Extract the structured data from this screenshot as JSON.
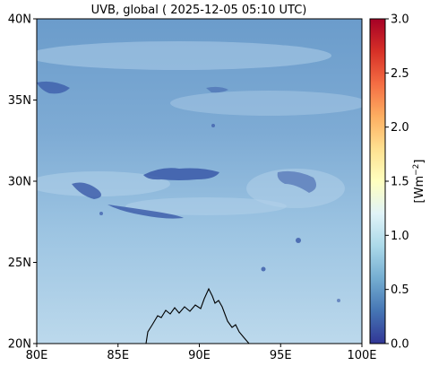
{
  "title": "UVB, global ( 2025-12-05 05:10 UTC)",
  "map": {
    "x_ticks": [
      "80E",
      "85E",
      "90E",
      "95E",
      "100E"
    ],
    "y_ticks": [
      "20N",
      "25N",
      "30N",
      "35N",
      "40N"
    ],
    "lon_range": [
      80,
      100
    ],
    "lat_range": [
      20,
      40
    ],
    "coastline_color": "#000000",
    "field_colors": {
      "south": "#bcd9ec",
      "north": "#6b9ccb",
      "low_patches": "#3a59a8"
    }
  },
  "colorbar": {
    "label": "[Wm",
    "label_exp": "−2",
    "label_close": "]",
    "ticks": [
      "0.0",
      "0.5",
      "1.0",
      "1.5",
      "2.0",
      "2.5",
      "3.0"
    ],
    "range": [
      0,
      3
    ],
    "colormap": "RdYlBu_r",
    "colors": [
      "#313695",
      "#4575b4",
      "#74add1",
      "#abd9e9",
      "#e0f3f8",
      "#ffffbf",
      "#fee090",
      "#fdae61",
      "#f46d43",
      "#d73027",
      "#a50026"
    ]
  }
}
